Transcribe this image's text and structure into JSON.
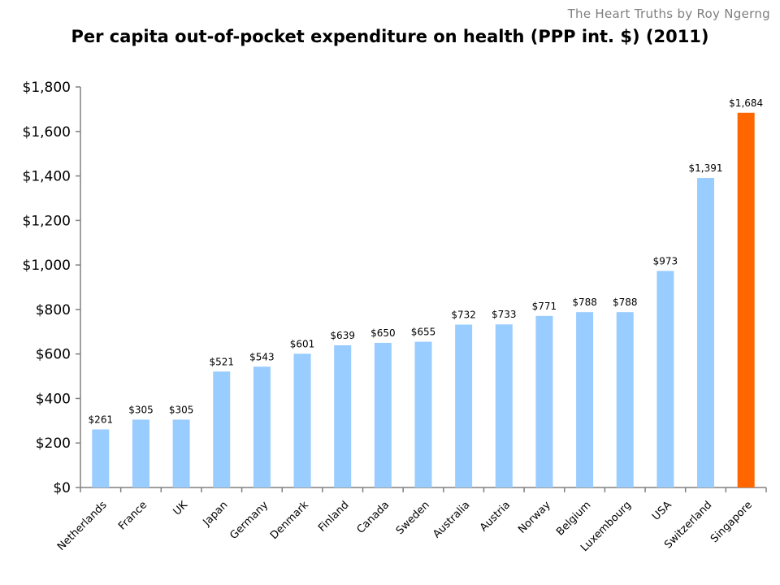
{
  "watermark": "The Heart Truths by Roy Ngerng",
  "chart_data": {
    "type": "bar",
    "title": "Per capita out-of-pocket expenditure on health (PPP int. $) (2011)",
    "categories": [
      "Netherlands",
      "France",
      "UK",
      "Japan",
      "Germany",
      "Denmark",
      "Finland",
      "Canada",
      "Sweden",
      "Australia",
      "Austria",
      "Norway",
      "Belgium",
      "Luxembourg",
      "USA",
      "Switzerland",
      "Singapore"
    ],
    "values": [
      261,
      305,
      305,
      521,
      543,
      601,
      639,
      650,
      655,
      732,
      733,
      771,
      788,
      788,
      973,
      1391,
      1684
    ],
    "value_labels": [
      "$261",
      "$305",
      "$305",
      "$521",
      "$543",
      "$601",
      "$639",
      "$650",
      "$655",
      "$732",
      "$733",
      "$771",
      "$788",
      "$788",
      "$973",
      "$1,391",
      "$1,684"
    ],
    "ylim": [
      0,
      1800
    ],
    "yticks": [
      0,
      200,
      400,
      600,
      800,
      1000,
      1200,
      1400,
      1600,
      1800
    ],
    "ytick_labels": [
      "$0",
      "$200",
      "$400",
      "$600",
      "$800",
      "$1,000",
      "$1,200",
      "$1,400",
      "$1,600",
      "$1,800"
    ],
    "grid": false,
    "colors": {
      "default": "#99ccff",
      "highlight": "#ff6600",
      "axis": "#808080"
    },
    "highlight_index": 16
  }
}
